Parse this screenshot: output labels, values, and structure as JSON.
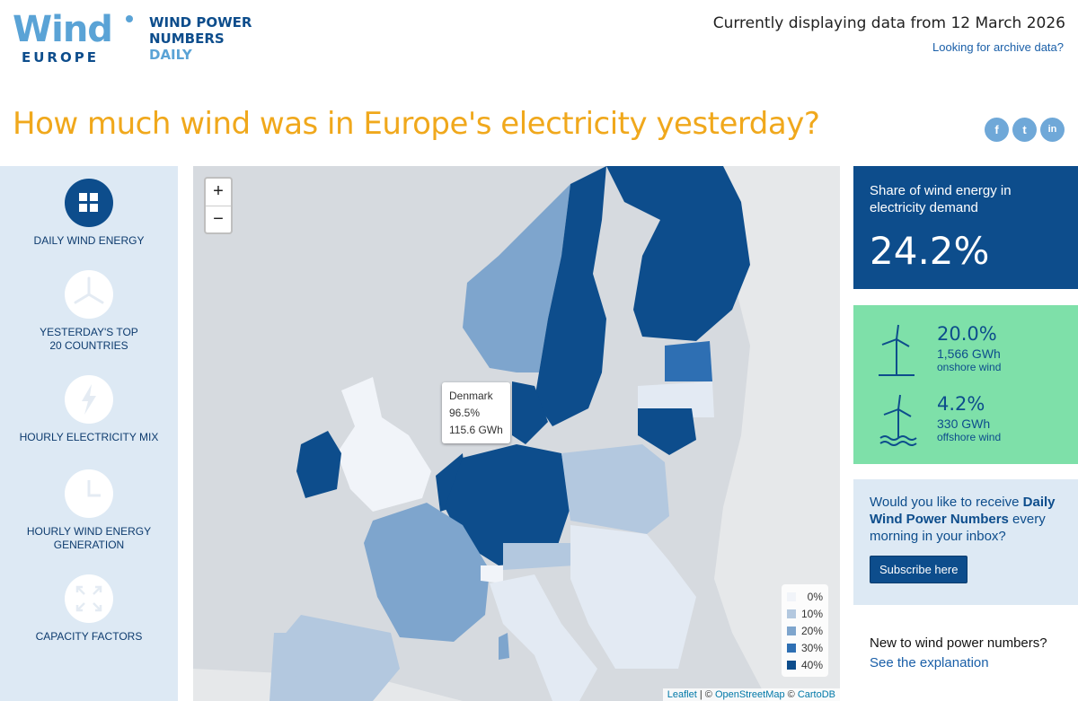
{
  "header": {
    "logo_wind": "Wind",
    "logo_europe": "EUROPE",
    "title_line1": "WIND POWER",
    "title_line2": "NUMBERS",
    "title_line3": "DAILY",
    "date_text": "Currently displaying data from 12 March 2026",
    "archive_link": "Looking for archive data?",
    "headline": "How much wind was in Europe's electricity yesterday?"
  },
  "social": {
    "facebook": "f",
    "twitter": "t",
    "linkedin": "in"
  },
  "nav": {
    "items": [
      {
        "label": "DAILY WIND ENERGY",
        "icon": "grid-icon",
        "active": true
      },
      {
        "label": "YESTERDAY'S TOP 20 COUNTRIES",
        "icon": "turbine-blades-icon",
        "active": false
      },
      {
        "label": "HOURLY ELECTRICITY MIX",
        "icon": "lightning-icon",
        "active": false
      },
      {
        "label": "HOURLY WIND ENERGY GENERATION",
        "icon": "clock-icon",
        "active": false
      },
      {
        "label": "CAPACITY FACTORS",
        "icon": "expand-arrows-icon",
        "active": false
      }
    ]
  },
  "map": {
    "zoom_in": "+",
    "zoom_out": "−",
    "tooltip": {
      "country": "Denmark",
      "share": "96.5%",
      "energy": "115.6 GWh"
    },
    "legend": [
      {
        "label": "0%",
        "color": "#f1f4f9"
      },
      {
        "label": "10%",
        "color": "#b3c8df"
      },
      {
        "label": "20%",
        "color": "#7ea5cd"
      },
      {
        "label": "30%",
        "color": "#2e6fb3"
      },
      {
        "label": "40%",
        "color": "#0d4d8c"
      }
    ],
    "attribution": {
      "leaflet": "Leaflet",
      "sep1": " | © ",
      "osm": "OpenStreetMap",
      "sep2": " © ",
      "carto": "CartoDB"
    }
  },
  "share": {
    "label": "Share of wind energy in electricity demand",
    "value": "24.2%"
  },
  "wind": {
    "onshore": {
      "pct": "20.0%",
      "gwh": "1,566 GWh",
      "type": "onshore wind"
    },
    "offshore": {
      "pct": "4.2%",
      "gwh": "330 GWh",
      "type": "offshore wind"
    }
  },
  "subscribe": {
    "text_pre": "Would you like to receive ",
    "text_bold": "Daily Wind Power Numbers",
    "text_post": " every morning in your inbox?",
    "button": "Subscribe here"
  },
  "explain": {
    "question": "New to wind power numbers?",
    "link": "See the explanation"
  },
  "colors": {
    "brand_blue": "#0d4d8c",
    "accent_orange": "#f0a81c",
    "wind_green": "#7ee0a9"
  }
}
